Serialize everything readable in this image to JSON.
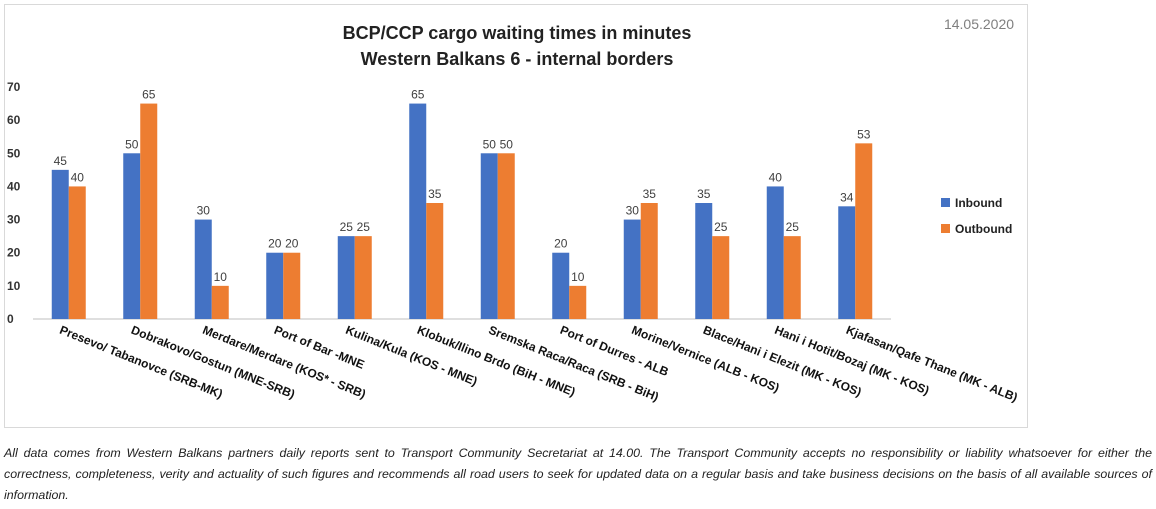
{
  "date": "14.05.2020",
  "chart_data": {
    "type": "bar",
    "title_lines": [
      "BCP/CCP cargo waiting times in minutes",
      "Western Balkans 6 - internal borders"
    ],
    "categories": [
      "Presevo/ Tabanovce (SRB-MK)",
      "Dobrakovo/Gostun (MNE-SRB)",
      "Merdare/Merdare (KOS* - SRB)",
      "Port of Bar -MNE",
      "Kulina/Kula (KOS - MNE)",
      "Klobuk/Ilino Brdo (BiH - MNE)",
      "Sremska Raca/Raca (SRB - BiH)",
      "Port of Durres - ALB",
      "Morine/Vernice (ALB - KOS)",
      "Blace/Hani i Elezit (MK - KOS)",
      "Hani i Hotit/Bozaj (MK - KOS)",
      "Kjafasan/Qafe Thane (MK - ALB)"
    ],
    "series": [
      {
        "name": "Inbound",
        "color": "#4472c4",
        "values": [
          45,
          50,
          30,
          20,
          25,
          65,
          50,
          20,
          30,
          35,
          40,
          34
        ]
      },
      {
        "name": "Outbound",
        "color": "#ed7d31",
        "values": [
          40,
          65,
          10,
          20,
          25,
          35,
          50,
          10,
          35,
          25,
          25,
          53
        ]
      }
    ],
    "yticks": [
      0,
      10,
      20,
      30,
      40,
      50,
      60,
      70
    ],
    "ylim": [
      0,
      70
    ],
    "grid": false,
    "legend_position": "right"
  },
  "disclaimer": "All data comes from Western Balkans partners daily reports sent to Transport Community Secretariat at 14.00. The Transport Community accepts no responsibility or liability whatsoever for either the correctness, completeness, verity and actuality of such figures and recommends all road users to seek for updated data on a regular basis and take business decisions on the basis of all available sources of information."
}
